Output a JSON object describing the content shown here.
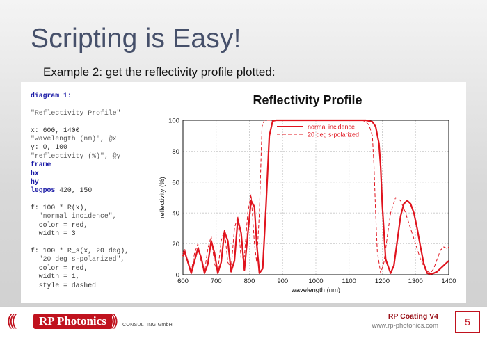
{
  "slide": {
    "title": "Scripting is Easy!",
    "subtitle": "Example 2: get the reflectivity profile plotted:",
    "page_number": "5"
  },
  "code_lines": [
    [
      {
        "t": "diagram",
        "c": "kw"
      },
      {
        "t": " 1:",
        "c": "num"
      }
    ],
    [],
    [
      {
        "t": "\"Reflectivity Profile\"",
        "c": "str"
      }
    ],
    [],
    [
      {
        "t": "x: 600, 1400",
        "c": ""
      }
    ],
    [
      {
        "t": "\"wavelength (nm)\", @x",
        "c": "str"
      }
    ],
    [
      {
        "t": "y: 0, 100",
        "c": ""
      }
    ],
    [
      {
        "t": "\"reflectivity (%)\", @y",
        "c": "str"
      }
    ],
    [
      {
        "t": "frame",
        "c": "kw"
      }
    ],
    [
      {
        "t": "hx",
        "c": "kw"
      }
    ],
    [
      {
        "t": "hy",
        "c": "kw"
      }
    ],
    [
      {
        "t": "legpos",
        "c": "kw"
      },
      {
        "t": " 420, 150",
        "c": ""
      }
    ],
    [],
    [
      {
        "t": "f: 100 * R(x),",
        "c": ""
      }
    ],
    [
      {
        "t": "  \"normal incidence\",",
        "c": "str"
      }
    ],
    [
      {
        "t": "  color = red,",
        "c": ""
      }
    ],
    [
      {
        "t": "  width = 3",
        "c": ""
      }
    ],
    [],
    [
      {
        "t": "f: 100 * R_s(x, 20 deg),",
        "c": ""
      }
    ],
    [
      {
        "t": "  \"20 deg s-polarized\",",
        "c": "str"
      }
    ],
    [
      {
        "t": "  color = red,",
        "c": ""
      }
    ],
    [
      {
        "t": "  width = 1,",
        "c": ""
      }
    ],
    [
      {
        "t": "  style = dashed",
        "c": ""
      }
    ]
  ],
  "chart_data": {
    "type": "line",
    "title": "Reflectivity Profile",
    "xlabel": "wavelength (nm)",
    "ylabel": "reflectivity (%)",
    "xlim": [
      600,
      1400
    ],
    "ylim": [
      0,
      100
    ],
    "xticks": [
      600,
      700,
      800,
      900,
      1000,
      1100,
      1200,
      1300,
      1400
    ],
    "yticks": [
      0,
      20,
      40,
      60,
      80,
      100
    ],
    "grid": true,
    "legend_position": "top-right",
    "series": [
      {
        "name": "normal incidence",
        "color": "#e0141e",
        "style": "solid",
        "x": [
          600,
          605,
          615,
          625,
          635,
          645,
          655,
          665,
          675,
          685,
          695,
          705,
          715,
          725,
          735,
          745,
          755,
          765,
          775,
          785,
          795,
          805,
          815,
          822,
          830,
          840,
          850,
          860,
          870,
          880,
          890,
          900,
          920,
          950,
          1000,
          1050,
          1100,
          1150,
          1160,
          1170,
          1180,
          1190,
          1195,
          1200,
          1210,
          1225,
          1235,
          1245,
          1255,
          1265,
          1275,
          1285,
          1295,
          1305,
          1315,
          1325,
          1335,
          1345,
          1355,
          1365,
          1375,
          1385,
          1395,
          1400
        ],
        "y": [
          12,
          15,
          8,
          1,
          9,
          17,
          11,
          1,
          7,
          22,
          14,
          1,
          8,
          28,
          22,
          2,
          9,
          36,
          27,
          3,
          26,
          48,
          44,
          20,
          1,
          4,
          45,
          90,
          99.5,
          100,
          100,
          100,
          100,
          100,
          100,
          100,
          100,
          100,
          99.5,
          99,
          96,
          85,
          70,
          45,
          10,
          1,
          6,
          22,
          38,
          46,
          48,
          46,
          40,
          30,
          18,
          7,
          1,
          0.5,
          1,
          2,
          4,
          6,
          8,
          9
        ]
      },
      {
        "name": "20 deg s-polarized",
        "color": "#e0141e",
        "style": "dashed",
        "x": [
          600,
          605,
          615,
          625,
          635,
          645,
          655,
          665,
          675,
          685,
          695,
          705,
          715,
          725,
          735,
          745,
          755,
          765,
          775,
          785,
          795,
          805,
          815,
          822,
          830,
          838,
          845,
          855,
          865,
          875,
          885,
          900,
          950,
          1000,
          1050,
          1100,
          1140,
          1150,
          1160,
          1170,
          1175,
          1180,
          1185,
          1195,
          1205,
          1215,
          1225,
          1240,
          1255,
          1270,
          1285,
          1300,
          1315,
          1330,
          1345,
          1355,
          1365,
          1375,
          1385,
          1395,
          1400
        ],
        "y": [
          14,
          17,
          7,
          2,
          14,
          20,
          8,
          2,
          17,
          25,
          7,
          2,
          22,
          29,
          8,
          4,
          30,
          38,
          10,
          12,
          40,
          52,
          20,
          8,
          40,
          96,
          100,
          100,
          100,
          100,
          100,
          100,
          100,
          100,
          100,
          100,
          100,
          99,
          97,
          90,
          70,
          40,
          15,
          1,
          8,
          25,
          40,
          50,
          48,
          40,
          30,
          20,
          10,
          3,
          1,
          4,
          10,
          16,
          18,
          17,
          18
        ]
      }
    ]
  },
  "footer": {
    "logo_text": "RP Photonics",
    "consulting_text": "CONSULTING GmbH",
    "product": "RP Coating V4",
    "website": "www.rp-photonics.com"
  },
  "colors": {
    "title": "#46506a",
    "brand_red": "#c0121e",
    "curve_red": "#e0141e"
  }
}
